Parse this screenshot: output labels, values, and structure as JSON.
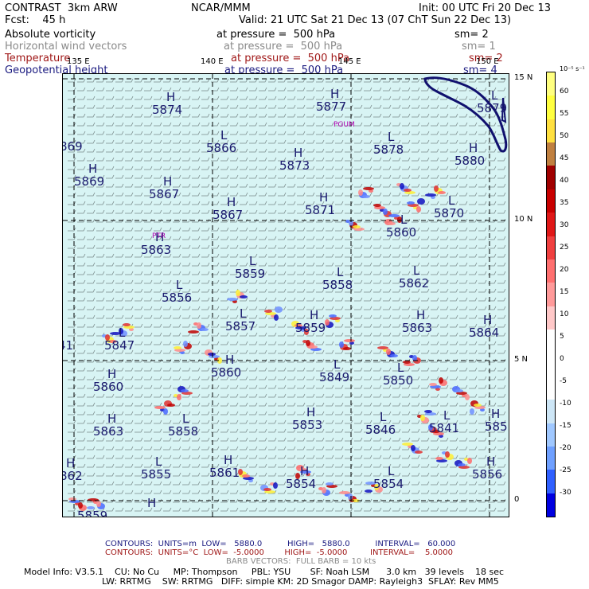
{
  "header": {
    "left1": "CONTRAST  3km ARW",
    "left2": "Fcst:    45 h",
    "center1": "NCAR/MMM",
    "init": "Init: 00 UTC Fri 20 Dec 13",
    "valid": "Valid: 21 UTC Sat 21 Dec 13 (07 ChT Sun 22 Dec 13)"
  },
  "fields": [
    {
      "name": "Absolute vorticity",
      "level": "at pressure =  500 hPa",
      "sm": "sm= 2",
      "color": "#000000"
    },
    {
      "name": "Horizontal wind vectors",
      "level": "at pressure =  500 hPa",
      "sm": "sm= 1",
      "color": "#8a8a8a"
    },
    {
      "name": "Temperature",
      "level": "at pressure =  500 hPa",
      "sm": "sm= 2",
      "color": "#a01818"
    },
    {
      "name": "Geopotential height",
      "level": "at pressure =  500 hPa",
      "sm": "sm= 4",
      "color": "#1a1a80"
    }
  ],
  "map": {
    "lon_labels": [
      "135 E",
      "140 E",
      "145 E",
      "150 E"
    ],
    "lat_labels": [
      "15 N",
      "10 N",
      "5 N",
      "0"
    ],
    "stations": [
      "PGUM",
      "PTR"
    ],
    "centers": [
      {
        "t": "H",
        "v": "5874"
      },
      {
        "t": "H",
        "v": "5877"
      },
      {
        "t": "L",
        "v": "5879"
      },
      {
        "t": "",
        "v": "869"
      },
      {
        "t": "L",
        "v": "5866"
      },
      {
        "t": "L",
        "v": "5878"
      },
      {
        "t": "H",
        "v": "5880"
      },
      {
        "t": "H",
        "v": "5869"
      },
      {
        "t": "H",
        "v": "5873"
      },
      {
        "t": "H",
        "v": "5867"
      },
      {
        "t": "H",
        "v": "5867"
      },
      {
        "t": "H",
        "v": "5871"
      },
      {
        "t": "L",
        "v": "5870"
      },
      {
        "t": "L",
        "v": "5860"
      },
      {
        "t": "H",
        "v": "5863"
      },
      {
        "t": "L",
        "v": "5859"
      },
      {
        "t": "L",
        "v": "5858"
      },
      {
        "t": "L",
        "v": "5862"
      },
      {
        "t": "L",
        "v": "5856"
      },
      {
        "t": "L",
        "v": "5857"
      },
      {
        "t": "H",
        "v": "5859"
      },
      {
        "t": "H",
        "v": "5863"
      },
      {
        "t": "H",
        "v": "5864"
      },
      {
        "t": "",
        "v": "41"
      },
      {
        "t": "L",
        "v": "5847"
      },
      {
        "t": "H",
        "v": "5860"
      },
      {
        "t": "L",
        "v": "5849"
      },
      {
        "t": "L",
        "v": "5850"
      },
      {
        "t": "H",
        "v": "5860"
      },
      {
        "t": "H",
        "v": "5853"
      },
      {
        "t": "L",
        "v": "5846"
      },
      {
        "t": "L",
        "v": "5841"
      },
      {
        "t": "H",
        "v": "585"
      },
      {
        "t": "H",
        "v": "5863"
      },
      {
        "t": "L",
        "v": "5858"
      },
      {
        "t": "H",
        "v": "862"
      },
      {
        "t": "L",
        "v": "5855"
      },
      {
        "t": "H",
        "v": "5861"
      },
      {
        "t": "H",
        "v": "5854"
      },
      {
        "t": "L",
        "v": "5854"
      },
      {
        "t": "H",
        "v": "5856"
      },
      {
        "t": "",
        "v": "5859"
      },
      {
        "t": "H",
        "v": ""
      }
    ]
  },
  "colorbar": {
    "unit": "10⁻⁵ s⁻¹",
    "ticks": [
      "60",
      "55",
      "50",
      "45",
      "40",
      "35",
      "30",
      "25",
      "20",
      "15",
      "10",
      "5",
      "0",
      "-5",
      "-10",
      "-15",
      "-20",
      "-25",
      "-30"
    ],
    "colors": [
      "#0000e0",
      "#3060ff",
      "#6fa0ff",
      "#a0c8ff",
      "#cde6f6",
      "#ffffff",
      "#ffffff",
      "#ffffff",
      "#ffc8c8",
      "#ff9a9a",
      "#ff7070",
      "#f04040",
      "#e01818",
      "#c80000",
      "#a00000",
      "#c08040",
      "#ffe040",
      "#ffff40",
      "#ffff80"
    ]
  },
  "footer": {
    "contours1": "CONTOURS:  UNITS=m  LOW=   5880.0          HIGH=   5880.0          INTERVAL=   60.000",
    "contours2": "CONTOURS:  UNITS=°C  LOW=  -5.0000        HIGH=  -5.0000         INTERVAL=    5.0000",
    "barbs": "BARB VECTORS:  FULL BARB = 10 kts",
    "model1": "Model Info: V3.5.1    CU: No Cu     MP: Thompson     PBL: YSU       SF: Noah LSM      3.0 km   39 levels    18 sec",
    "model2": "LW: RRTMG    SW: RRTMG   DIFF: simple KM: 2D Smagor DAMP: Rayleigh3  SFLAY: Rev MM5"
  }
}
